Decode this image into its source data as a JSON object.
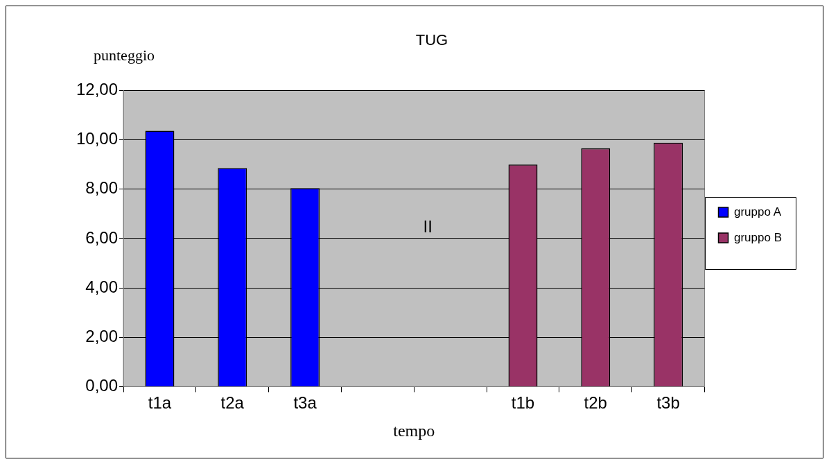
{
  "chart_data": {
    "type": "bar",
    "title": "TUG",
    "xlabel": "tempo",
    "ylabel": "punteggio",
    "categories": [
      "t1a",
      "t2a",
      "t3a",
      null,
      null,
      "t1b",
      "t2b",
      "t3b"
    ],
    "series": [
      {
        "name": "gruppo A",
        "color": "#0000ff",
        "values": [
          10.37,
          8.86,
          8.04,
          null,
          null,
          null,
          null,
          null
        ]
      },
      {
        "name": "gruppo B",
        "color": "#993366",
        "values": [
          null,
          null,
          null,
          null,
          null,
          9.0,
          9.65,
          9.88
        ]
      }
    ],
    "ylim": [
      0,
      12
    ],
    "yticks": [
      {
        "value": 0,
        "label": "0,00"
      },
      {
        "value": 2,
        "label": "2,00"
      },
      {
        "value": 4,
        "label": "4,00"
      },
      {
        "value": 6,
        "label": "6,00"
      },
      {
        "value": 8,
        "label": "8,00"
      },
      {
        "value": 10,
        "label": "10,00"
      },
      {
        "value": 12,
        "label": "12,00"
      }
    ],
    "grid": "y",
    "legend": "right",
    "annotations": [
      "II"
    ]
  }
}
